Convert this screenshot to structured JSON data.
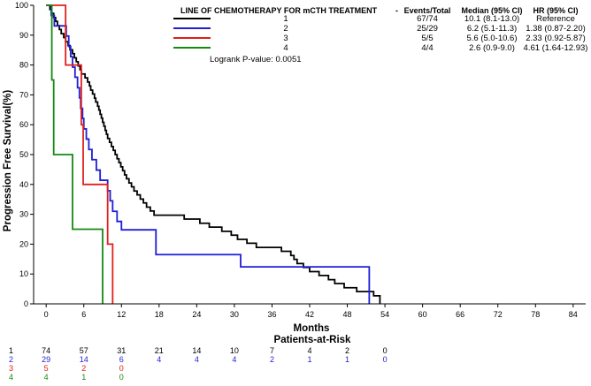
{
  "chart_data": {
    "type": "line",
    "subtype": "kaplan-meier",
    "xlabel": "Months",
    "ylabel": "Progression Free Survival(%)",
    "xlim": [
      -2,
      86
    ],
    "ylim": [
      0,
      100
    ],
    "xticks": [
      0,
      6,
      12,
      18,
      24,
      30,
      36,
      42,
      48,
      54,
      60,
      66,
      72,
      78,
      84
    ],
    "yticks": [
      0,
      10,
      20,
      30,
      40,
      50,
      60,
      70,
      80,
      90,
      100
    ],
    "legend": {
      "title": "LINE OF CHEMOTHERAPY FOR mCTH TREATMENT",
      "dash": "-",
      "col_headers": [
        "Events/Total",
        "Median (95% CI)",
        "HR (95% CI)"
      ],
      "rows": [
        {
          "label": "1",
          "color": "#000000",
          "events": "67/74",
          "median": "10.1 (8.1-13.0)",
          "hr": "Reference"
        },
        {
          "label": "2",
          "color": "#1f1fd6",
          "events": "25/29",
          "median": "6.2 (5.1-11.3)",
          "hr": "1.38 (0.87-2.20)"
        },
        {
          "label": "3",
          "color": "#e0201c",
          "events": "5/5",
          "median": "5.6 (5.0-10.6)",
          "hr": "2.33 (0.92-5.87)"
        },
        {
          "label": "4",
          "color": "#138a13",
          "events": "4/4",
          "median": "2.6 (0.9-9.0)",
          "hr": "4.61 (1.64-12.93)"
        }
      ],
      "logrank": "Logrank P-value: 0.0051"
    },
    "series": [
      {
        "name": "1",
        "color": "#000000",
        "points": [
          [
            0,
            100
          ],
          [
            0.6,
            98.6
          ],
          [
            0.9,
            97.3
          ],
          [
            1.2,
            95.9
          ],
          [
            1.5,
            94.6
          ],
          [
            1.8,
            93.2
          ],
          [
            2.1,
            91.9
          ],
          [
            2.4,
            90.5
          ],
          [
            2.8,
            89.2
          ],
          [
            3.1,
            87.8
          ],
          [
            3.5,
            86.5
          ],
          [
            3.8,
            85.1
          ],
          [
            4.2,
            83.8
          ],
          [
            4.5,
            82.4
          ],
          [
            4.8,
            81.1
          ],
          [
            5.1,
            79.7
          ],
          [
            5.4,
            78.4
          ],
          [
            5.6,
            77.0
          ],
          [
            6.2,
            75.7
          ],
          [
            6.6,
            74.3
          ],
          [
            6.9,
            73.0
          ],
          [
            7.1,
            71.6
          ],
          [
            7.4,
            70.3
          ],
          [
            7.7,
            68.9
          ],
          [
            7.9,
            67.6
          ],
          [
            8.2,
            66.2
          ],
          [
            8.4,
            64.9
          ],
          [
            8.6,
            63.5
          ],
          [
            8.8,
            62.2
          ],
          [
            9.0,
            60.8
          ],
          [
            9.2,
            59.5
          ],
          [
            9.4,
            58.1
          ],
          [
            9.6,
            56.8
          ],
          [
            9.8,
            55.4
          ],
          [
            10.1,
            54.1
          ],
          [
            10.4,
            52.7
          ],
          [
            10.7,
            51.4
          ],
          [
            11.0,
            50.0
          ],
          [
            11.3,
            48.6
          ],
          [
            11.6,
            47.3
          ],
          [
            11.9,
            45.9
          ],
          [
            12.2,
            44.6
          ],
          [
            12.5,
            43.2
          ],
          [
            12.8,
            41.9
          ],
          [
            13.2,
            40.5
          ],
          [
            13.6,
            39.2
          ],
          [
            14.0,
            37.8
          ],
          [
            14.5,
            36.5
          ],
          [
            15.0,
            35.1
          ],
          [
            15.5,
            33.8
          ],
          [
            16.0,
            32.4
          ],
          [
            16.6,
            31.1
          ],
          [
            17.2,
            29.7
          ],
          [
            22.0,
            28.4
          ],
          [
            24.5,
            27.0
          ],
          [
            26.0,
            25.7
          ],
          [
            28.0,
            24.3
          ],
          [
            29.5,
            23.0
          ],
          [
            30.5,
            21.6
          ],
          [
            32.0,
            20.3
          ],
          [
            33.5,
            18.9
          ],
          [
            37.5,
            17.6
          ],
          [
            39.0,
            16.2
          ],
          [
            39.5,
            14.9
          ],
          [
            40.0,
            13.5
          ],
          [
            41.0,
            12.2
          ],
          [
            42.0,
            10.8
          ],
          [
            43.5,
            9.5
          ],
          [
            45.0,
            8.1
          ],
          [
            46.0,
            6.8
          ],
          [
            47.5,
            5.4
          ],
          [
            49.5,
            4.1
          ],
          [
            52.2,
            2.7
          ],
          [
            53.2,
            0
          ]
        ],
        "at_risk": [
          74,
          57,
          31,
          21,
          14,
          10,
          7,
          4,
          2,
          0
        ]
      },
      {
        "name": "2",
        "color": "#1f1fd6",
        "points": [
          [
            0,
            100
          ],
          [
            0.8,
            96.6
          ],
          [
            1.3,
            93.1
          ],
          [
            3.2,
            89.7
          ],
          [
            3.6,
            86.2
          ],
          [
            3.9,
            82.8
          ],
          [
            4.2,
            79.3
          ],
          [
            4.6,
            75.9
          ],
          [
            5.0,
            72.4
          ],
          [
            5.3,
            69.0
          ],
          [
            5.5,
            65.5
          ],
          [
            5.8,
            62.1
          ],
          [
            6.0,
            58.6
          ],
          [
            6.4,
            55.2
          ],
          [
            6.8,
            51.7
          ],
          [
            7.3,
            48.3
          ],
          [
            8.0,
            44.8
          ],
          [
            8.6,
            41.4
          ],
          [
            9.8,
            37.9
          ],
          [
            10.2,
            34.5
          ],
          [
            10.6,
            31.0
          ],
          [
            11.3,
            27.6
          ],
          [
            12.0,
            24.8
          ],
          [
            17.5,
            16.5
          ],
          [
            31.0,
            12.4
          ],
          [
            51.5,
            0
          ]
        ],
        "at_risk": [
          29,
          14,
          6,
          4,
          4,
          4,
          2,
          1,
          1,
          0
        ]
      },
      {
        "name": "3",
        "color": "#e0201c",
        "points": [
          [
            0,
            100
          ],
          [
            3.1,
            80
          ],
          [
            5.6,
            60
          ],
          [
            5.9,
            40
          ],
          [
            9.8,
            20
          ],
          [
            10.6,
            0
          ]
        ],
        "at_risk": [
          5,
          2,
          0
        ]
      },
      {
        "name": "4",
        "color": "#138a13",
        "points": [
          [
            0,
            100
          ],
          [
            0.9,
            75
          ],
          [
            1.2,
            50
          ],
          [
            4.2,
            25
          ],
          [
            9.0,
            0
          ]
        ],
        "at_risk": [
          4,
          1,
          0
        ]
      }
    ],
    "risk_table": {
      "title": "Patients-at-Risk",
      "times": [
        0,
        6,
        12,
        18,
        24,
        30,
        36,
        42,
        48,
        54
      ]
    }
  }
}
